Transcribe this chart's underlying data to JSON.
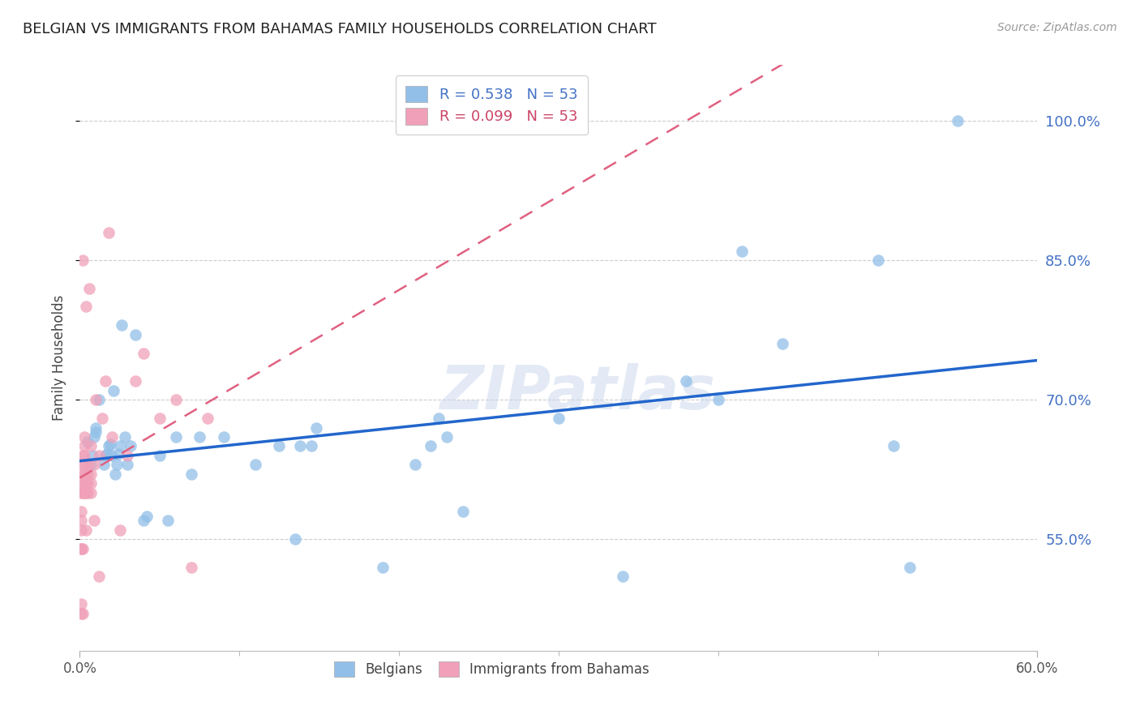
{
  "title": "BELGIAN VS IMMIGRANTS FROM BAHAMAS FAMILY HOUSEHOLDS CORRELATION CHART",
  "source": "Source: ZipAtlas.com",
  "ylabel": "Family Households",
  "yticks": [
    0.55,
    0.7,
    0.85,
    1.0
  ],
  "ytick_labels": [
    "55.0%",
    "70.0%",
    "85.0%",
    "100.0%"
  ],
  "xmin": 0.0,
  "xmax": 0.6,
  "ymin": 0.43,
  "ymax": 1.06,
  "belgian_color": "#92bfe8",
  "bahamas_color": "#f0a0b8",
  "trend_blue": "#2266cc",
  "trend_pink": "#e06080",
  "legend_label_blue": "R = 0.538   N = 53",
  "legend_label_pink": "R = 0.099   N = 53",
  "legend_label_blue_name": "Belgians",
  "legend_label_pink_name": "Immigrants from Bahamas",
  "watermark": "ZIPatlas",
  "belgian_x": [
    0.005,
    0.007,
    0.008,
    0.009,
    0.01,
    0.01,
    0.012,
    0.015,
    0.016,
    0.017,
    0.018,
    0.019,
    0.02,
    0.021,
    0.022,
    0.023,
    0.024,
    0.025,
    0.026,
    0.028,
    0.03,
    0.032,
    0.035,
    0.04,
    0.042,
    0.05,
    0.055,
    0.06,
    0.07,
    0.075,
    0.09,
    0.11,
    0.125,
    0.135,
    0.138,
    0.145,
    0.148,
    0.19,
    0.21,
    0.22,
    0.225,
    0.23,
    0.24,
    0.3,
    0.34,
    0.38,
    0.4,
    0.415,
    0.44,
    0.5,
    0.51,
    0.52,
    0.55
  ],
  "belgian_y": [
    0.655,
    0.63,
    0.64,
    0.66,
    0.665,
    0.67,
    0.7,
    0.63,
    0.64,
    0.642,
    0.65,
    0.652,
    0.64,
    0.71,
    0.62,
    0.63,
    0.642,
    0.65,
    0.78,
    0.66,
    0.63,
    0.65,
    0.77,
    0.57,
    0.575,
    0.64,
    0.57,
    0.66,
    0.62,
    0.66,
    0.66,
    0.63,
    0.65,
    0.55,
    0.65,
    0.65,
    0.67,
    0.52,
    0.63,
    0.65,
    0.68,
    0.66,
    0.58,
    0.68,
    0.51,
    0.72,
    0.7,
    0.86,
    0.76,
    0.85,
    0.65,
    0.52,
    1.0
  ],
  "bahamas_x": [
    0.001,
    0.001,
    0.001,
    0.001,
    0.001,
    0.001,
    0.001,
    0.001,
    0.002,
    0.002,
    0.002,
    0.002,
    0.002,
    0.002,
    0.002,
    0.002,
    0.003,
    0.003,
    0.003,
    0.003,
    0.003,
    0.003,
    0.003,
    0.004,
    0.004,
    0.004,
    0.004,
    0.005,
    0.005,
    0.005,
    0.005,
    0.006,
    0.007,
    0.007,
    0.007,
    0.007,
    0.009,
    0.009,
    0.01,
    0.012,
    0.012,
    0.014,
    0.016,
    0.018,
    0.02,
    0.025,
    0.03,
    0.035,
    0.04,
    0.05,
    0.06,
    0.07,
    0.08
  ],
  "bahamas_y": [
    0.47,
    0.48,
    0.54,
    0.54,
    0.56,
    0.57,
    0.58,
    0.6,
    0.47,
    0.54,
    0.6,
    0.61,
    0.62,
    0.63,
    0.64,
    0.85,
    0.6,
    0.61,
    0.62,
    0.63,
    0.64,
    0.65,
    0.66,
    0.56,
    0.6,
    0.61,
    0.8,
    0.6,
    0.61,
    0.62,
    0.63,
    0.82,
    0.6,
    0.61,
    0.62,
    0.65,
    0.57,
    0.63,
    0.7,
    0.51,
    0.64,
    0.68,
    0.72,
    0.88,
    0.66,
    0.56,
    0.64,
    0.72,
    0.75,
    0.68,
    0.7,
    0.52,
    0.68
  ]
}
